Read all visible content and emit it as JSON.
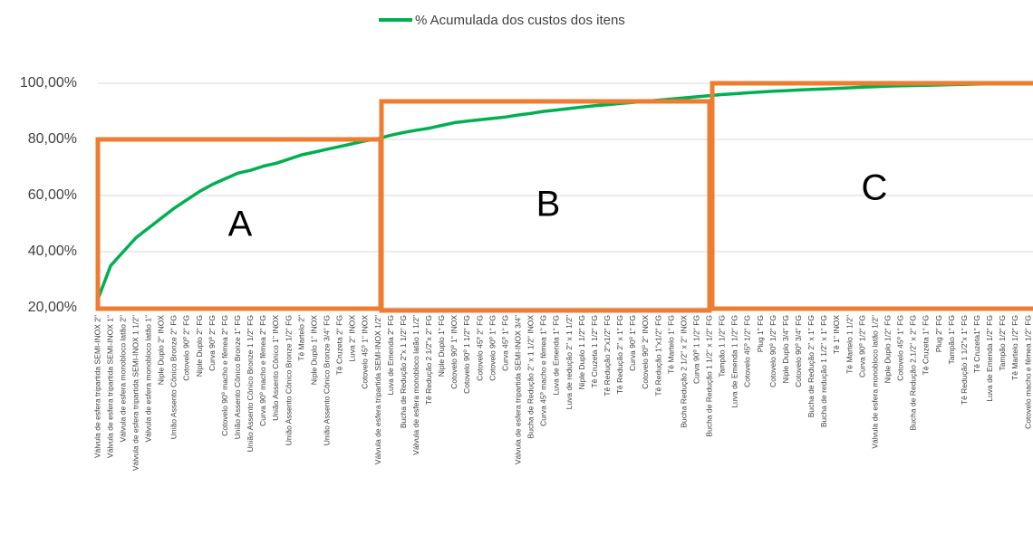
{
  "chart_data": {
    "type": "line",
    "series": [
      {
        "name": "% Acumulada dos custos dos itens",
        "color": "#00b050",
        "values": [
          23,
          35,
          40,
          45,
          48.5,
          52,
          55.5,
          58.5,
          61.5,
          64,
          66,
          68,
          69,
          70.5,
          71.5,
          73,
          74.5,
          75.5,
          76.5,
          77.5,
          78.5,
          79.5,
          80.3,
          81.5,
          82.5,
          83.3,
          84,
          85,
          86,
          86.5,
          87,
          87.5,
          88,
          88.7,
          89.3,
          90,
          90.5,
          91,
          91.5,
          92,
          92.4,
          92.8,
          93.2,
          93.6,
          94,
          94.4,
          94.8,
          95.2,
          95.6,
          96,
          96.3,
          96.6,
          96.9,
          97.2,
          97.4,
          97.6,
          97.8,
          98,
          98.2,
          98.4,
          98.6,
          98.8,
          99,
          99.1,
          99.2,
          99.3,
          99.4,
          99.5,
          99.6,
          99.7,
          99.8,
          99.9,
          99.95,
          100
        ]
      }
    ],
    "categories": [
      "Válvula de esfera tripartida SEMI-INOX 2\"",
      "Válvula de esfera tripartida SEMI-INOX 1\"",
      "Válvula de esfera monobloco latão 2\"",
      "Válvula de esfera tripartida SEMI-INOX 1 1/2\"",
      "Válvula de esfera monobloco latão 1\"",
      "Niple Duplo 2\" INOX",
      "União Assento Cônico Bronze 2\" FG",
      "Cotovelo 90º 2\" FG",
      "Niple Duplo 2\" FG",
      "Curva 90º 2\" FG",
      "Cotovelo 90º macho e fêmea 2\" FG",
      "União Assento Cônico Bronze 1\" FG",
      "União Assento Cônico Bronze 1 1/2\" FG",
      "Curva 90º macho e fêmea 2\" FG",
      "União Assento Cônico 1\" INOX",
      "União Assento Cônico Bronze 1/2\" FG",
      "Tê Martelo 2\"",
      "Niple Duplo 1\" INOX",
      "União Assento Cônico Bronze 3/4\" FG",
      "Tê Cruzeta 2\" FG",
      "Luva 2\" INOX",
      "Cotovelo 45º 1\" INOX",
      "Válvula de esfera tripartida SEMI-INOX 1/2\"",
      "Luva de Emenda 2\" FG",
      "Bucha de Redução 2\"x 1 1/2\" FG",
      "Válvula de esfera monobloco latão 1 1/2\"",
      "Tê Redução 2 1/2\"x 2\" FG",
      "Niple Duplo 1\" FG",
      "Cotovelo 90º 1\" INOX",
      "Cotovelo 90º 1 1/2\" FG",
      "Cotovelo 45º 2\" FG",
      "Cotovelo 90º 1\" FG",
      "Curva 45º 1\" FG",
      "Válvula de esfera tripartida SEMI-INOX 3/4\"",
      "Bucha de Redução 2\" x 1 1/2\" INOX",
      "Curva 45º macho e fêmea 1\" FG",
      "Luva de Emenda 1\" FG",
      "Luva de redução 2\" x 1 1/2\"",
      "Niple Duplo 1 1/2\" FG",
      "Tê Cruzeta 1 1/2\" FG",
      "Tê Redução 2\"x1/2\" FG",
      "Tê Redução 2\" x 1\" FG",
      "Curva 90º 1\" FG",
      "Cotovelo 90º 2\" INOX",
      "Tê Redução 1\"x1/2\" FG",
      "Tê Martelo 1\" FG",
      "Bucha Redução 2 1/2\" x 2\" INOX",
      "Curva 90º 1 1/2\" FG",
      "Bucha de Redução 1 1/2\" x 1/2\" FG",
      "Tampão 1 1/2\" FG",
      "Luva de Emenda 1 1/2\" FG",
      "Cotovelo 45º 1/2\" FG",
      "Plug 1\" FG",
      "Cotovelo 90º 1/2\" FG",
      "Niple Duplo 3/4\" FG",
      "Cotovelo 90º 3/4\" FG",
      "Bucha de Redução 2\" x 1\" FG",
      "Bucha de redução 1 1/2\" x 1\" FG",
      "Tê 1\" INOX",
      "Tê Martelo 1 1/2\"",
      "Curva 90º 1/2\" FG",
      "Válvula de esfera monobloco latão 1/2\"",
      "Niple Duplo 1/2\" FG",
      "Cotovelo 45º 1\" FG",
      "Bucha de Redução 2.1/2\" x 2\" FG",
      "Tê Cruzeta 1\" FG",
      "Plug 2\" FG",
      "Tampão 1\" FG",
      "Tê Redução 1 1/2\"x 1\" FG",
      "Tê Cruzeta1\" FG",
      "Luva de Emenda 1/2\" FG",
      "Tampão 1/2\" FG",
      "Tê Martelo 1/2\" FG",
      "Cotovelo macho e fêmea 1/2\" FG"
    ],
    "ylim": [
      20,
      100
    ],
    "yticks": [
      {
        "value": 20,
        "label": "20,00%"
      },
      {
        "value": 40,
        "label": "40,00%"
      },
      {
        "value": 60,
        "label": "60,00%"
      },
      {
        "value": 80,
        "label": "80,00%"
      },
      {
        "value": 100,
        "label": "100,00%"
      }
    ],
    "grid": true,
    "legend": "top",
    "annotations": [
      "A",
      "B",
      "C"
    ]
  }
}
